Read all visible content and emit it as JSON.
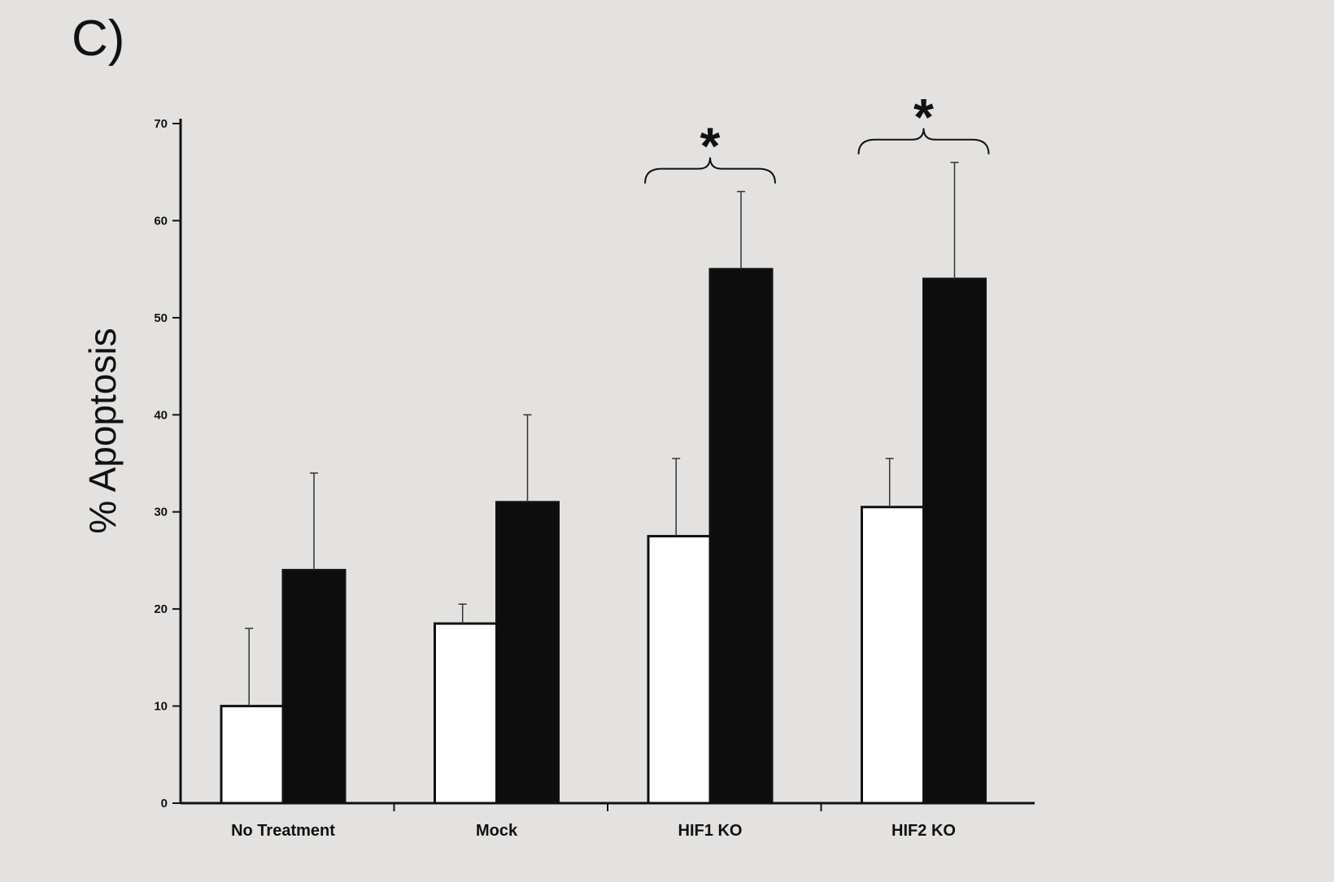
{
  "panel_label": "C)",
  "chart_data": {
    "type": "bar",
    "title": "",
    "xlabel": "",
    "ylabel": "% Apoptosis",
    "ylim": [
      0,
      70
    ],
    "yticks": [
      "0",
      "10",
      "20",
      "30",
      "40",
      "50",
      "60",
      "70"
    ],
    "categories": [
      "No Treatment",
      "Mock",
      "HIF1 KO",
      "HIF2 KO"
    ],
    "series": [
      {
        "fill": "#ffffff",
        "values": [
          10,
          18.5,
          27.5,
          30.5
        ],
        "errors": [
          8,
          2,
          8,
          5
        ]
      },
      {
        "fill": "#0d0d0d",
        "values": [
          24,
          31,
          55,
          54
        ],
        "errors": [
          10,
          9,
          8,
          12
        ]
      }
    ],
    "significance": [
      {
        "category": "HIF1 KO",
        "label": "*"
      },
      {
        "category": "HIF2 KO",
        "label": "*"
      }
    ],
    "grid": false,
    "legend": "none"
  }
}
